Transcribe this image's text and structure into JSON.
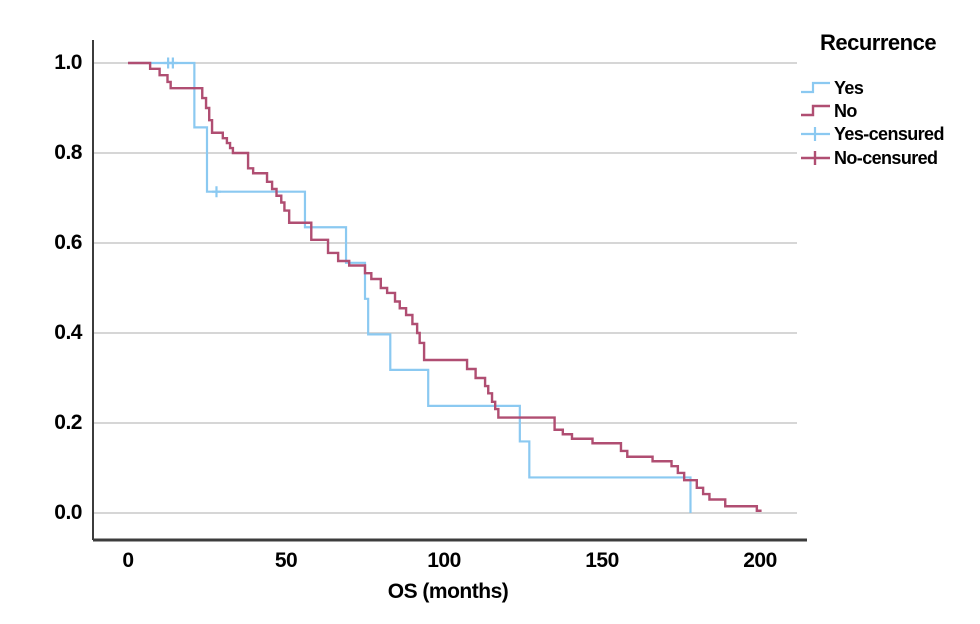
{
  "legend": {
    "title": "Recurrence",
    "items": [
      {
        "label": "Yes",
        "type": "step",
        "series": "Yes"
      },
      {
        "label": "No",
        "type": "step",
        "series": "No"
      },
      {
        "label": "Yes-censured",
        "type": "censored",
        "series": "Yes"
      },
      {
        "label": "No-censured",
        "type": "censored",
        "series": "No"
      }
    ]
  },
  "chart_data": {
    "type": "line",
    "subtype": "kaplan_meier_step_survival",
    "title": "",
    "xlabel": "OS (months)",
    "ylabel": "",
    "xlim": [
      0,
      215
    ],
    "ylim": [
      0,
      1.0
    ],
    "grid": "horizontal",
    "legend_position": "right",
    "x_ticks": [
      0,
      50,
      100,
      150,
      200
    ],
    "x_tick_labels": [
      "0",
      "50",
      "100",
      "150",
      "200"
    ],
    "y_ticks": [
      1.0,
      0.8,
      0.6,
      0.4,
      0.2,
      0.0
    ],
    "y_tick_labels": [
      "1.0",
      "0.8",
      "0.6",
      "0.4",
      "0.2",
      "0.0"
    ],
    "series": [
      {
        "name": "Yes",
        "color": "#8BC9F1",
        "line_width": 2.2,
        "end": 178,
        "steps": [
          [
            0,
            1.0
          ],
          [
            21,
            0.857
          ],
          [
            25,
            0.714
          ],
          [
            56,
            0.635
          ],
          [
            69,
            0.556
          ],
          [
            75,
            0.476
          ],
          [
            76,
            0.397
          ],
          [
            83,
            0.318
          ],
          [
            95,
            0.238
          ],
          [
            124,
            0.159
          ],
          [
            127,
            0.079
          ],
          [
            178,
            0.0
          ]
        ],
        "censored": [
          [
            12.7,
            1.0
          ],
          [
            14.2,
            1.0
          ],
          [
            28,
            0.714
          ]
        ]
      },
      {
        "name": "No",
        "color": "#B04E72",
        "line_width": 2.4,
        "end": 200.5,
        "steps": [
          [
            0,
            1.0
          ],
          [
            7,
            0.987
          ],
          [
            10,
            0.973
          ],
          [
            12.5,
            0.958
          ],
          [
            13.5,
            0.944
          ],
          [
            23.5,
            0.922
          ],
          [
            24.7,
            0.9
          ],
          [
            25.7,
            0.873
          ],
          [
            26.6,
            0.845
          ],
          [
            30,
            0.833
          ],
          [
            31.3,
            0.822
          ],
          [
            32.3,
            0.811
          ],
          [
            33.2,
            0.8
          ],
          [
            38,
            0.766
          ],
          [
            39.6,
            0.755
          ],
          [
            44,
            0.736
          ],
          [
            45.6,
            0.72
          ],
          [
            47,
            0.705
          ],
          [
            48.5,
            0.69
          ],
          [
            49.5,
            0.672
          ],
          [
            51,
            0.645
          ],
          [
            58,
            0.607
          ],
          [
            63.3,
            0.578
          ],
          [
            66.5,
            0.56
          ],
          [
            70,
            0.55
          ],
          [
            75,
            0.533
          ],
          [
            77,
            0.52
          ],
          [
            80,
            0.5
          ],
          [
            82,
            0.489
          ],
          [
            84.5,
            0.47
          ],
          [
            86,
            0.455
          ],
          [
            88,
            0.44
          ],
          [
            90,
            0.42
          ],
          [
            91.5,
            0.4
          ],
          [
            92.3,
            0.378
          ],
          [
            93.7,
            0.34
          ],
          [
            107.3,
            0.32
          ],
          [
            110,
            0.3
          ],
          [
            113,
            0.282
          ],
          [
            114,
            0.266
          ],
          [
            115.2,
            0.247
          ],
          [
            116.2,
            0.231
          ],
          [
            117.2,
            0.212
          ],
          [
            135,
            0.185
          ],
          [
            137.6,
            0.175
          ],
          [
            140.5,
            0.165
          ],
          [
            147,
            0.155
          ],
          [
            156,
            0.138
          ],
          [
            158,
            0.125
          ],
          [
            166,
            0.115
          ],
          [
            172,
            0.104
          ],
          [
            174,
            0.089
          ],
          [
            176,
            0.073
          ],
          [
            180,
            0.056
          ],
          [
            182,
            0.042
          ],
          [
            184,
            0.03
          ],
          [
            189,
            0.015
          ],
          [
            199,
            0.005
          ]
        ],
        "censored": []
      }
    ]
  },
  "style": {
    "grid_color": "#c9c9c9",
    "axis_color": "#3c3c3c",
    "text_color": "#000000",
    "background": "#ffffff"
  }
}
